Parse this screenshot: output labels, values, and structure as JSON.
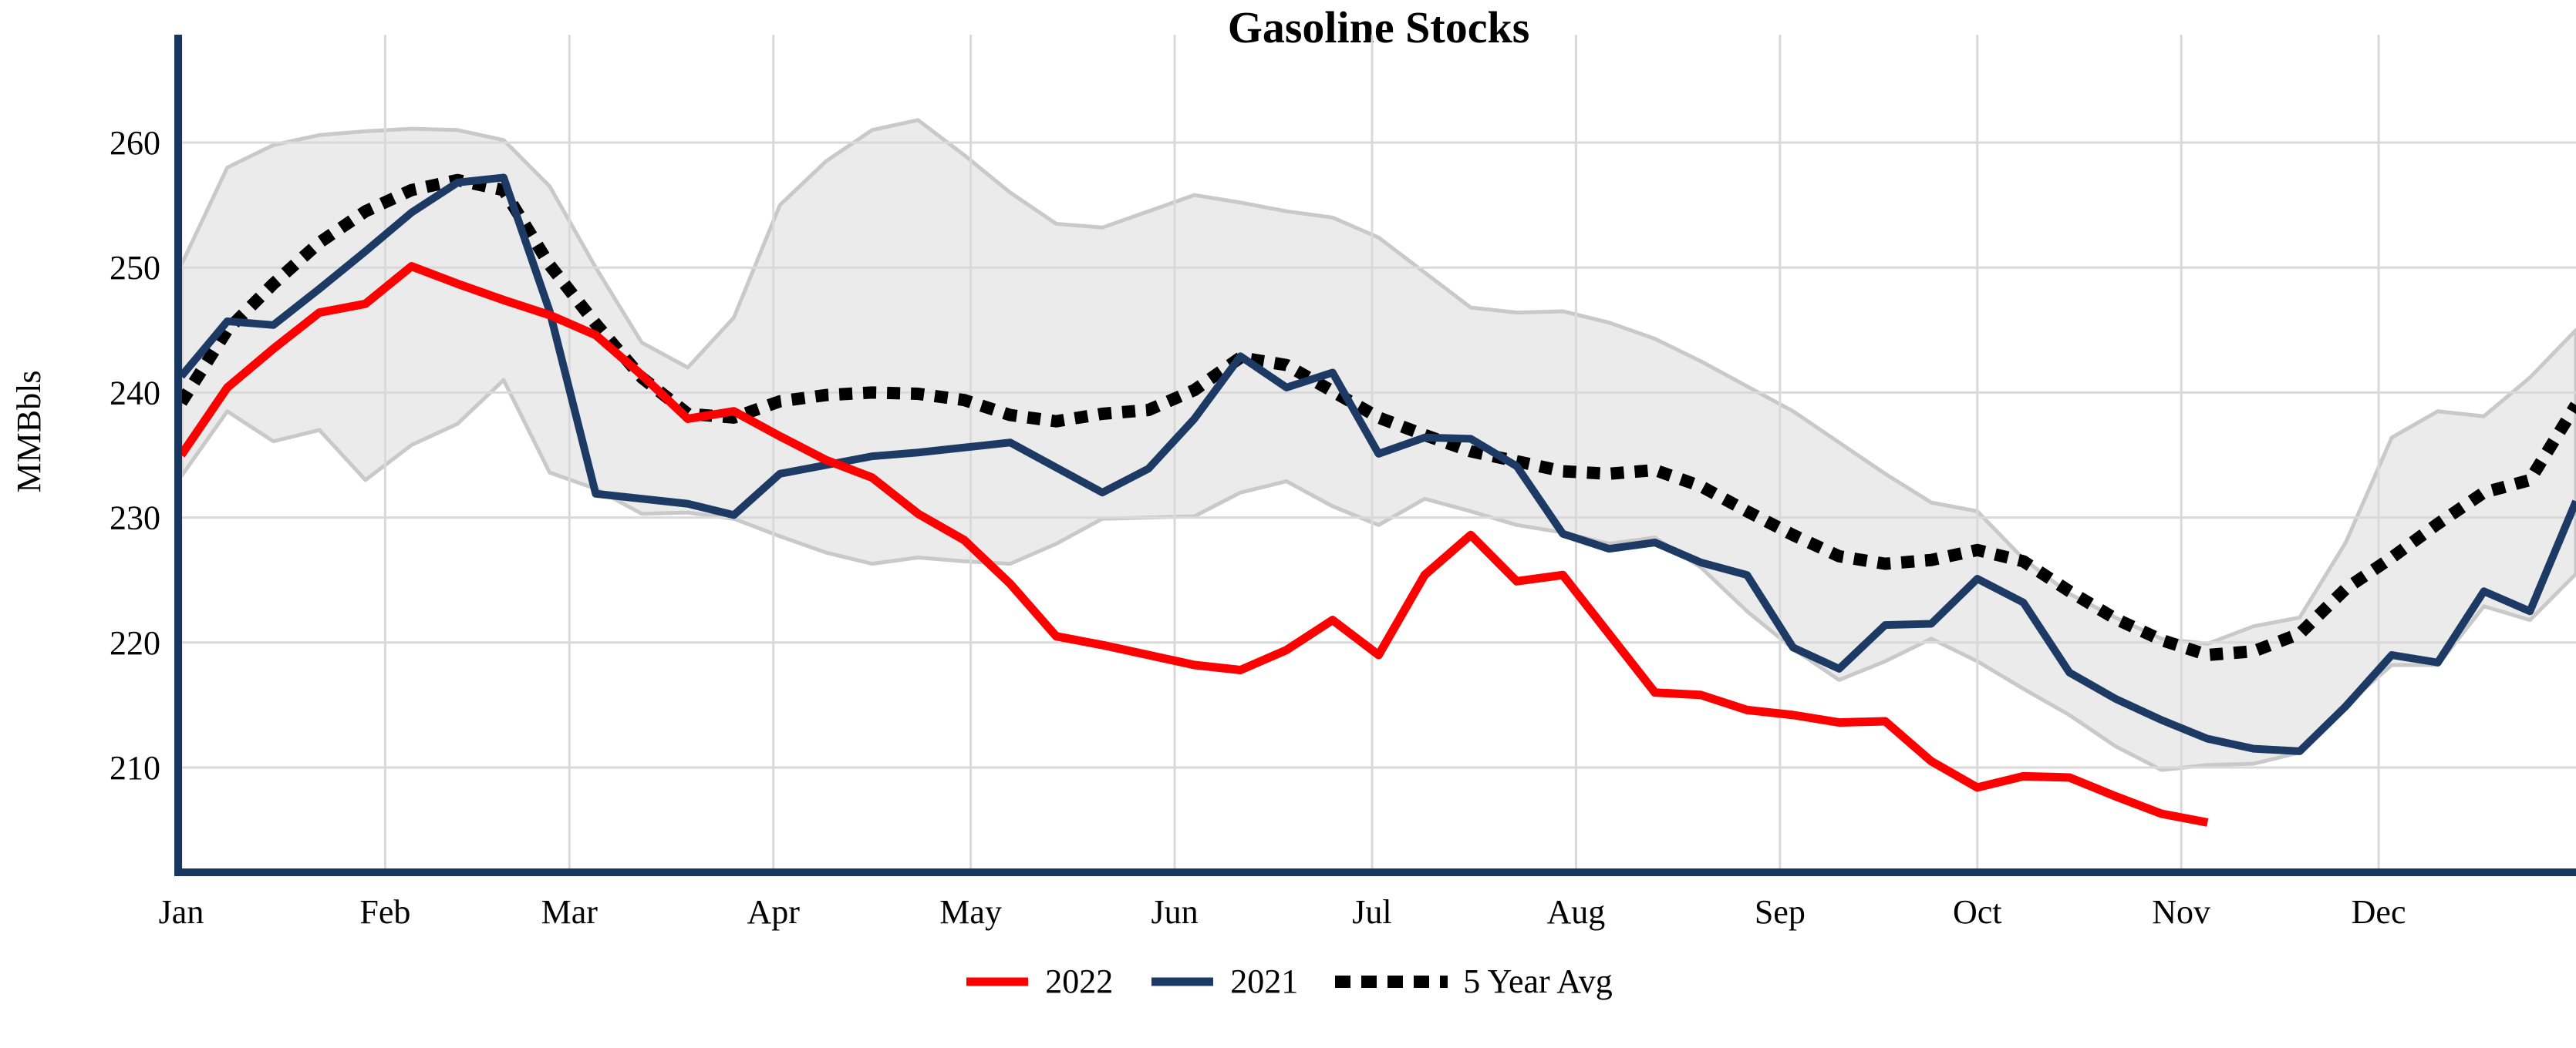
{
  "chart_data": {
    "type": "line",
    "title": "Gasoline Stocks",
    "ylabel": "MMBbls",
    "x_axis": {
      "tick_labels": [
        "Jan",
        "Feb",
        "Mar",
        "Apr",
        "May",
        "Jun",
        "Jul",
        "Aug",
        "Sep",
        "Oct",
        "Nov",
        "Dec"
      ],
      "month_start_days": [
        0,
        31,
        59,
        90,
        120,
        151,
        181,
        212,
        243,
        273,
        304,
        334
      ],
      "points_per_series": 53,
      "cadence": "weekly"
    },
    "y_axis": {
      "tick_labels": [
        "210",
        "220",
        "230",
        "240",
        "250",
        "260"
      ],
      "ticks": [
        210,
        220,
        230,
        240,
        250,
        260
      ],
      "range_shown": [
        201.5,
        268.5
      ],
      "grid": true
    },
    "legend": {
      "position": "bottom-center",
      "entries": [
        "2022",
        "2021",
        "5 Year Avg"
      ]
    },
    "colors": {
      "red_2022": "#fe0000",
      "navy_2021": "#1c3a63",
      "avg_dotted": "#000000",
      "band_fill": "#ebebeb",
      "band_edge": "#c9c9c9",
      "gridline": "#d9d9d9",
      "axis": "#17375e"
    },
    "band": {
      "top": [
        250.2,
        258.0,
        259.8,
        260.6,
        260.9,
        261.1,
        261.0,
        260.2,
        256.5,
        250.0,
        244.0,
        242.0,
        246.0,
        255.0,
        258.5,
        261.0,
        261.8,
        259.0,
        256.0,
        253.5,
        253.2,
        254.5,
        255.8,
        255.2,
        254.5,
        254.0,
        252.4,
        249.6,
        246.8,
        246.4,
        246.5,
        245.6,
        244.3,
        242.5,
        240.5,
        238.5,
        236.0,
        233.5,
        231.2,
        230.5,
        226.7,
        223.9,
        222.0,
        220.3,
        219.9,
        221.3,
        222.0,
        228.0,
        236.4,
        238.5,
        238.1,
        241.2,
        245.0
      ],
      "bottom": [
        233.3,
        238.5,
        236.1,
        237.0,
        233.0,
        235.8,
        237.5,
        241.0,
        233.6,
        232.3,
        230.3,
        230.4,
        229.9,
        228.5,
        227.2,
        226.3,
        226.8,
        226.5,
        226.3,
        227.9,
        229.9,
        230.0,
        230.1,
        232.0,
        232.9,
        230.9,
        229.4,
        231.5,
        230.5,
        229.4,
        228.8,
        227.9,
        228.4,
        226.0,
        222.5,
        219.5,
        217.0,
        218.5,
        220.3,
        218.5,
        216.3,
        214.2,
        211.7,
        209.8,
        210.2,
        210.3,
        211.2,
        215.0,
        218.2,
        218.2,
        222.9,
        221.8,
        225.5
      ]
    },
    "series": [
      {
        "name": "2022",
        "style": "solid",
        "color_key": "red_2022",
        "values": [
          235.0,
          240.4,
          243.5,
          246.4,
          247.1,
          250.1,
          248.7,
          247.4,
          246.2,
          244.6,
          241.4,
          237.9,
          238.5,
          236.5,
          234.6,
          233.2,
          230.3,
          228.2,
          224.7,
          220.5,
          219.8,
          219.0,
          218.2,
          217.8,
          219.4,
          221.8,
          219.0,
          225.4,
          228.6,
          224.9,
          225.4,
          220.7,
          216.0,
          215.8,
          214.6,
          214.2,
          213.6,
          213.7,
          210.5,
          208.4,
          209.3,
          209.2,
          207.7,
          206.3,
          205.6
        ]
      },
      {
        "name": "2021",
        "style": "solid",
        "color_key": "navy_2021",
        "values": [
          241.3,
          245.7,
          245.4,
          248.3,
          251.3,
          254.4,
          256.8,
          257.2,
          246.5,
          231.9,
          231.5,
          231.1,
          230.2,
          233.5,
          234.2,
          234.9,
          235.2,
          235.6,
          236.0,
          234.0,
          232.0,
          233.9,
          237.9,
          242.9,
          240.4,
          241.6,
          235.1,
          236.4,
          236.3,
          234.1,
          228.7,
          227.5,
          228.0,
          226.4,
          225.4,
          219.6,
          217.9,
          221.4,
          221.5,
          225.1,
          223.2,
          217.6,
          215.5,
          213.8,
          212.3,
          211.5,
          211.3,
          214.9,
          219.0,
          218.4,
          224.1,
          222.5,
          231.3
        ]
      },
      {
        "name": "5 Year Avg",
        "style": "dotted",
        "color_key": "avg_dotted",
        "values": [
          239.2,
          245.0,
          248.7,
          252.0,
          254.5,
          256.2,
          257.0,
          256.2,
          250.2,
          245.5,
          241.2,
          238.3,
          238.0,
          239.3,
          239.8,
          240.0,
          239.9,
          239.4,
          238.2,
          237.7,
          238.3,
          238.6,
          240.2,
          242.8,
          242.2,
          240.1,
          238.0,
          236.6,
          235.3,
          234.5,
          233.7,
          233.5,
          233.8,
          232.5,
          230.5,
          228.6,
          226.9,
          226.3,
          226.6,
          227.4,
          226.5,
          224.1,
          221.9,
          220.2,
          219.0,
          219.3,
          220.7,
          224.3,
          226.8,
          229.5,
          232.0,
          233.0,
          239.0
        ]
      }
    ]
  }
}
